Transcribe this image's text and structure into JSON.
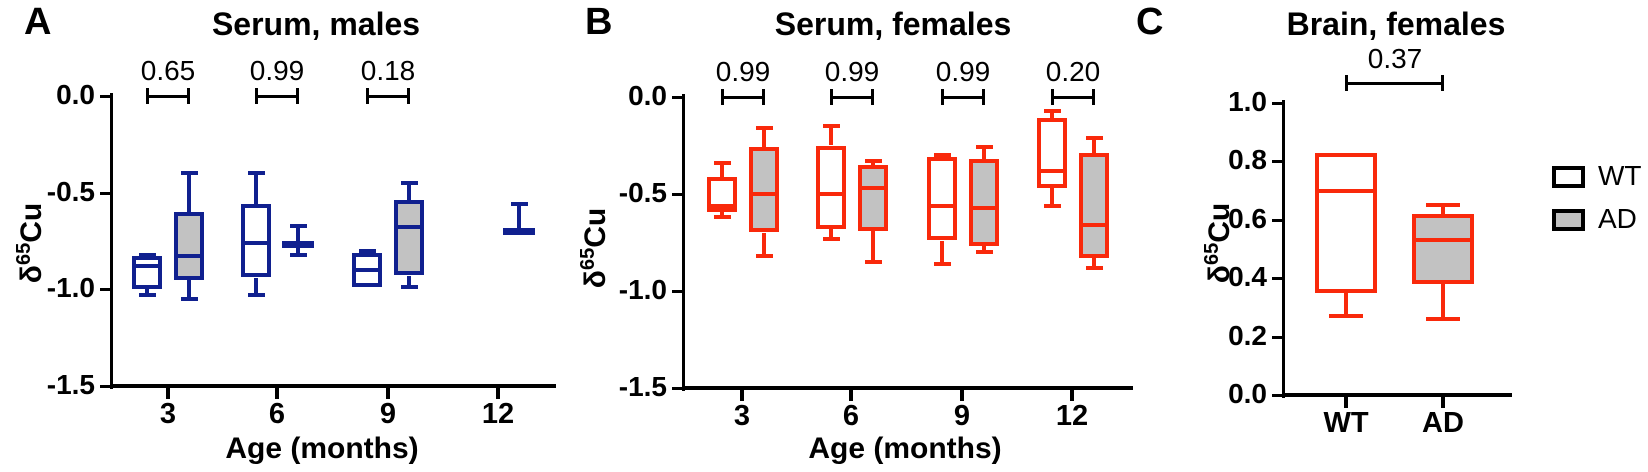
{
  "figure": {
    "background": "#ffffff",
    "legend": {
      "border_color": "#000000",
      "items": [
        {
          "label": "WT",
          "fill": "#ffffff"
        },
        {
          "label": "AD",
          "fill": "#c2c2c2"
        }
      ]
    }
  },
  "chart_data": [
    {
      "type": "box",
      "panel_label": "A",
      "title": "Serum, males",
      "xlabel": "Age (months)",
      "ylabel_parts": {
        "delta": "δ",
        "sup": "65",
        "rest": "Cu"
      },
      "color": "#10208f",
      "gray_fill": "#c2c2c2",
      "ylim": [
        -1.5,
        0.0
      ],
      "yticks": [
        {
          "label": "0.0",
          "value": 0.0
        },
        {
          "label": "-0.5",
          "value": -0.5
        },
        {
          "label": "-1.0",
          "value": -1.0
        },
        {
          "label": "-1.5",
          "value": -1.5
        }
      ],
      "categories": [
        "3",
        "6",
        "9",
        "12"
      ],
      "series": [
        {
          "name": "WT",
          "fill": "#ffffff",
          "boxes": [
            {
              "lo": -1.03,
              "q1": -1.0,
              "med": -0.88,
              "q3": -0.83,
              "hi": -0.82
            },
            {
              "lo": -1.03,
              "q1": -0.94,
              "med": -0.76,
              "q3": -0.56,
              "hi": -0.4
            },
            {
              "lo": -0.985,
              "q1": -0.985,
              "med": -0.9,
              "q3": -0.81,
              "hi": -0.8
            },
            null
          ]
        },
        {
          "name": "AD",
          "fill": "#c2c2c2",
          "boxes": [
            {
              "lo": -1.05,
              "q1": -0.95,
              "med": -0.83,
              "q3": -0.6,
              "hi": -0.4
            },
            {
              "lo": -0.82,
              "q1": -0.77,
              "med": -0.765,
              "q3": -0.76,
              "hi": -0.67,
              "collapsed": true
            },
            {
              "lo": -0.99,
              "q1": -0.93,
              "med": -0.68,
              "q3": -0.54,
              "hi": -0.45
            },
            {
              "lo": -0.7,
              "q1": -0.7,
              "med": -0.7,
              "q3": -0.7,
              "hi": -0.56,
              "collapsed": true
            }
          ]
        }
      ],
      "comparisons": [
        {
          "category": "3",
          "label": "0.65"
        },
        {
          "category": "6",
          "label": "0.99"
        },
        {
          "category": "9",
          "label": "0.18"
        }
      ]
    },
    {
      "type": "box",
      "panel_label": "B",
      "title": "Serum, females",
      "xlabel": "Age (months)",
      "ylabel_parts": {
        "delta": "δ",
        "sup": "65",
        "rest": "Cu"
      },
      "color": "#f9290b",
      "gray_fill": "#c2c2c2",
      "ylim": [
        -1.5,
        0.0
      ],
      "yticks": [
        {
          "label": "0.0",
          "value": 0.0
        },
        {
          "label": "-0.5",
          "value": -0.5
        },
        {
          "label": "-1.0",
          "value": -1.0
        },
        {
          "label": "-1.5",
          "value": -1.5
        }
      ],
      "categories": [
        "3",
        "6",
        "9",
        "12"
      ],
      "series": [
        {
          "name": "WT",
          "fill": "#ffffff",
          "boxes": [
            {
              "lo": -0.62,
              "q1": -0.59,
              "med": -0.56,
              "q3": -0.41,
              "hi": -0.34
            },
            {
              "lo": -0.73,
              "q1": -0.68,
              "med": -0.5,
              "q3": -0.25,
              "hi": -0.15
            },
            {
              "lo": -0.86,
              "q1": -0.74,
              "med": -0.56,
              "q3": -0.31,
              "hi": -0.3
            },
            {
              "lo": -0.56,
              "q1": -0.47,
              "med": -0.38,
              "q3": -0.11,
              "hi": -0.07
            }
          ]
        },
        {
          "name": "AD",
          "fill": "#c2c2c2",
          "boxes": [
            {
              "lo": -0.82,
              "q1": -0.7,
              "med": -0.5,
              "q3": -0.26,
              "hi": -0.16
            },
            {
              "lo": -0.85,
              "q1": -0.69,
              "med": -0.47,
              "q3": -0.35,
              "hi": -0.33
            },
            {
              "lo": -0.8,
              "q1": -0.77,
              "med": -0.57,
              "q3": -0.32,
              "hi": -0.26
            },
            {
              "lo": -0.88,
              "q1": -0.83,
              "med": -0.66,
              "q3": -0.29,
              "hi": -0.21
            }
          ]
        }
      ],
      "comparisons": [
        {
          "category": "3",
          "label": "0.99"
        },
        {
          "category": "6",
          "label": "0.99"
        },
        {
          "category": "9",
          "label": "0.99"
        },
        {
          "category": "12",
          "label": "0.20"
        }
      ]
    },
    {
      "type": "box",
      "panel_label": "C",
      "title": "Brain, females",
      "xlabel": "",
      "ylabel_parts": {
        "delta": "δ",
        "sup": "65",
        "rest": "Cu"
      },
      "color": "#f9290b",
      "gray_fill": "#c2c2c2",
      "ylim": [
        0.0,
        1.0
      ],
      "yticks": [
        {
          "label": "1.0",
          "value": 1.0
        },
        {
          "label": "0.8",
          "value": 0.8
        },
        {
          "label": "0.6",
          "value": 0.6
        },
        {
          "label": "0.4",
          "value": 0.4
        },
        {
          "label": "0.2",
          "value": 0.2
        },
        {
          "label": "0.0",
          "value": 0.0
        }
      ],
      "categories": [
        "WT",
        "AD"
      ],
      "series": [
        {
          "name": "WT",
          "fill": "#ffffff",
          "boxes": [
            {
              "lo": 0.27,
              "q1": 0.35,
              "med": 0.7,
              "q3": 0.83,
              "hi": 0.83
            },
            null
          ]
        },
        {
          "name": "AD",
          "fill": "#c2c2c2",
          "boxes": [
            null,
            {
              "lo": 0.26,
              "q1": 0.38,
              "med": 0.53,
              "q3": 0.62,
              "hi": 0.65
            }
          ]
        }
      ],
      "comparisons": [
        {
          "from": "WT",
          "to": "AD",
          "label": "0.37"
        }
      ]
    }
  ]
}
